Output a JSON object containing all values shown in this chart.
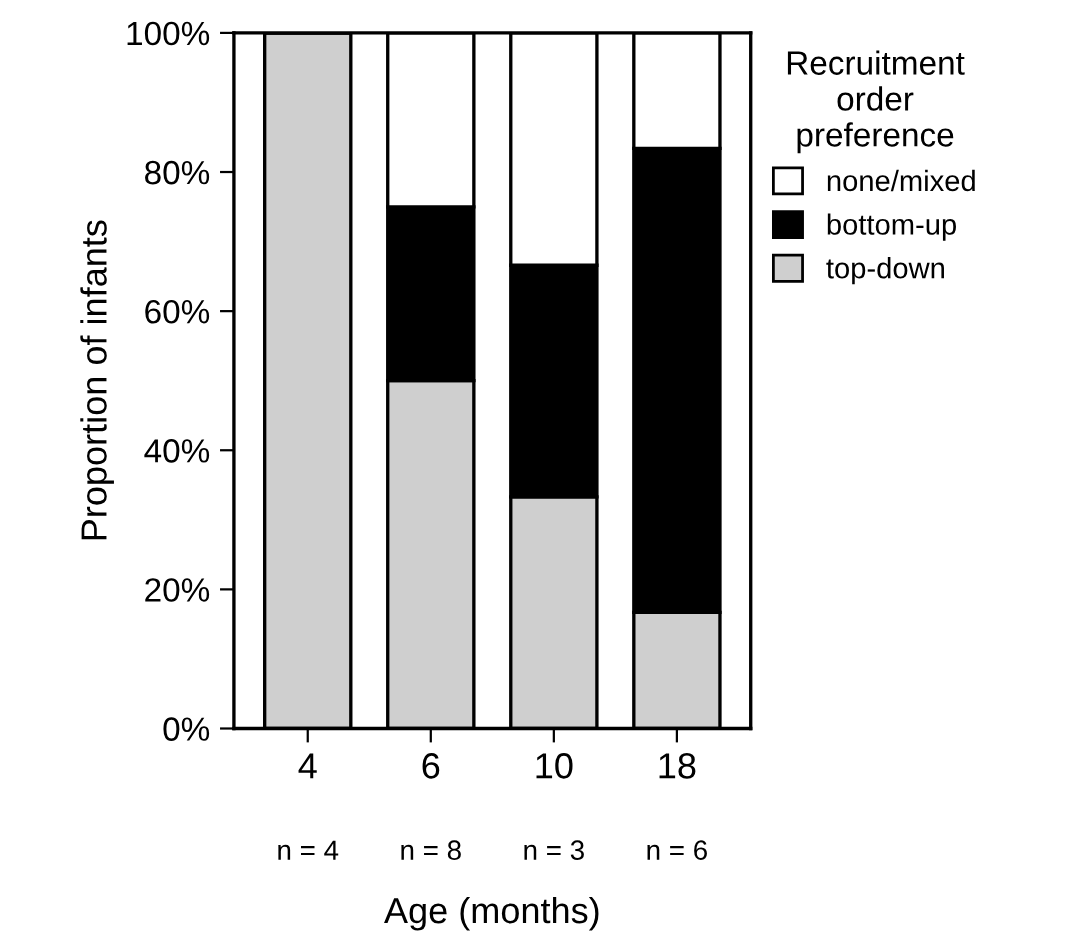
{
  "chart_data": {
    "type": "bar",
    "stacked": true,
    "xlabel": "Age (months)",
    "ylabel": "Proportion of infants",
    "legend_title": "Recruitment\norder\npreference",
    "legend": "right",
    "categories": [
      "4",
      "6",
      "10",
      "18"
    ],
    "series": [
      {
        "name": "top-down",
        "color": "#cfcfcf",
        "values": [
          100,
          50,
          33.3,
          16.7
        ]
      },
      {
        "name": "bottom-up",
        "color": "#000000",
        "values": [
          0,
          25,
          33.3,
          66.7
        ]
      },
      {
        "name": "none/mixed",
        "color": "#ffffff",
        "values": [
          0,
          25,
          33.4,
          16.6
        ]
      }
    ],
    "ylim": [
      0,
      100
    ],
    "yticks": [
      {
        "value": 0,
        "label": "0%"
      },
      {
        "value": 20,
        "label": "20%"
      },
      {
        "value": 40,
        "label": "40%"
      },
      {
        "value": 60,
        "label": "60%"
      },
      {
        "value": 80,
        "label": "80%"
      },
      {
        "value": 100,
        "label": "100%"
      }
    ],
    "annotations": [
      "n = 4",
      "n = 8",
      "n = 3",
      "n = 6"
    ],
    "grid": false
  }
}
